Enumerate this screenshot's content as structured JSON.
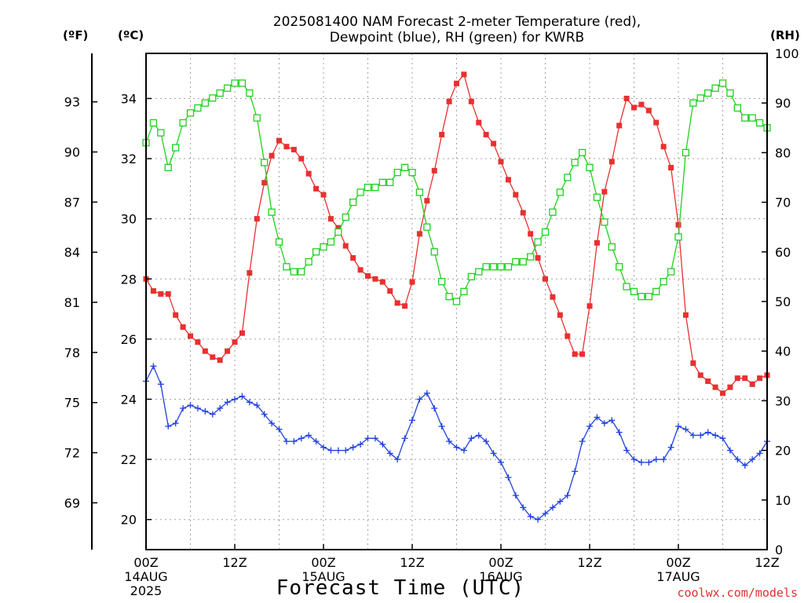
{
  "chart_data": {
    "type": "line",
    "title": "2025081400 NAM Forecast 2-meter Temperature (red),",
    "subtitle": "Dewpoint (blue), RH (green) for KWRB",
    "xlabel": "Forecast Time (UTC)",
    "credit": "coolwx.com/models",
    "left_unit_f": "(ºF)",
    "left_unit_c": "(ºC)",
    "right_unit": "(RH)",
    "x_ticks": [
      {
        "hour": 0,
        "label": [
          "00Z",
          "14AUG",
          "2025"
        ]
      },
      {
        "hour": 12,
        "label": [
          "12Z"
        ]
      },
      {
        "hour": 24,
        "label": [
          "00Z",
          "15AUG"
        ]
      },
      {
        "hour": 36,
        "label": [
          "12Z"
        ]
      },
      {
        "hour": 48,
        "label": [
          "00Z",
          "16AUG"
        ]
      },
      {
        "hour": 60,
        "label": [
          "12Z"
        ]
      },
      {
        "hour": 72,
        "label": [
          "00Z",
          "17AUG"
        ]
      },
      {
        "hour": 84,
        "label": [
          "12Z"
        ]
      }
    ],
    "xlim": [
      0,
      84
    ],
    "ylim_c": [
      19,
      35.5
    ],
    "yticks_c": [
      "20",
      "22",
      "24",
      "26",
      "28",
      "30",
      "32",
      "34"
    ],
    "yticks_f": [
      "69",
      "72",
      "75",
      "78",
      "81",
      "84",
      "87",
      "90",
      "93"
    ],
    "ylim_rh": [
      0,
      100
    ],
    "yticks_rh": [
      "0",
      "10",
      "20",
      "30",
      "40",
      "50",
      "60",
      "70",
      "80",
      "90",
      "100"
    ],
    "grid": true,
    "colors": {
      "temperature": "#e83030",
      "dewpoint": "#2040e0",
      "rh": "#20d020"
    },
    "x": [
      0,
      1,
      2,
      3,
      4,
      5,
      6,
      7,
      8,
      9,
      10,
      11,
      12,
      13,
      14,
      15,
      16,
      17,
      18,
      19,
      20,
      21,
      22,
      23,
      24,
      25,
      26,
      27,
      28,
      29,
      30,
      31,
      32,
      33,
      34,
      35,
      36,
      37,
      38,
      39,
      40,
      41,
      42,
      43,
      44,
      45,
      46,
      47,
      48,
      49,
      50,
      51,
      52,
      53,
      54,
      55,
      56,
      57,
      58,
      59,
      60,
      61,
      62,
      63,
      64,
      65,
      66,
      67,
      68,
      69,
      70,
      71,
      72,
      73,
      74,
      75,
      76,
      77,
      78,
      79,
      80,
      81,
      82,
      83,
      84
    ],
    "series": [
      {
        "name": "Temperature",
        "unit": "C",
        "color": "#e83030",
        "marker": "filled-square",
        "values": [
          28.0,
          27.6,
          27.5,
          27.5,
          26.8,
          26.4,
          26.1,
          25.9,
          25.6,
          25.4,
          25.3,
          25.6,
          25.9,
          26.2,
          28.2,
          30.0,
          31.2,
          32.1,
          32.6,
          32.4,
          32.3,
          32.0,
          31.5,
          31.0,
          30.8,
          30.0,
          29.7,
          29.1,
          28.7,
          28.3,
          28.1,
          28.0,
          27.9,
          27.6,
          27.2,
          27.1,
          27.9,
          29.5,
          30.6,
          31.6,
          32.8,
          33.9,
          34.5,
          34.8,
          33.9,
          33.2,
          32.8,
          32.5,
          31.9,
          31.3,
          30.8,
          30.2,
          29.5,
          28.7,
          28.0,
          27.4,
          26.8,
          26.1,
          25.5,
          25.5,
          27.1,
          29.2,
          30.9,
          31.9,
          33.1,
          34.0,
          33.7,
          33.8,
          33.6,
          33.2,
          32.4,
          31.7,
          29.8,
          26.8,
          25.2,
          24.8,
          24.6,
          24.4,
          24.2,
          24.4,
          24.7,
          24.7,
          24.5,
          24.7,
          24.8
        ]
      },
      {
        "name": "Dewpoint",
        "unit": "C",
        "color": "#2040e0",
        "marker": "plus",
        "values": [
          24.6,
          25.1,
          24.5,
          23.1,
          23.2,
          23.7,
          23.8,
          23.7,
          23.6,
          23.5,
          23.7,
          23.9,
          24.0,
          24.1,
          23.9,
          23.8,
          23.5,
          23.2,
          23.0,
          22.6,
          22.6,
          22.7,
          22.8,
          22.6,
          22.4,
          22.3,
          22.3,
          22.3,
          22.4,
          22.5,
          22.7,
          22.7,
          22.5,
          22.2,
          22.0,
          22.7,
          23.3,
          24.0,
          24.2,
          23.7,
          23.1,
          22.6,
          22.4,
          22.3,
          22.7,
          22.8,
          22.6,
          22.2,
          21.9,
          21.4,
          20.8,
          20.4,
          20.1,
          20.0,
          20.2,
          20.4,
          20.6,
          20.8,
          21.6,
          22.6,
          23.1,
          23.4,
          23.2,
          23.3,
          22.9,
          22.3,
          22.0,
          21.9,
          21.9,
          22.0,
          22.0,
          22.4,
          23.1,
          23.0,
          22.8,
          22.8,
          22.9,
          22.8,
          22.7,
          22.3,
          22.0,
          21.8,
          22.0,
          22.2,
          22.6
        ]
      },
      {
        "name": "RH",
        "unit": "%",
        "color": "#20d020",
        "marker": "open-square",
        "values": [
          82,
          86,
          84,
          77,
          81,
          86,
          88,
          89,
          90,
          91,
          92,
          93,
          94,
          94,
          92,
          87,
          78,
          68,
          62,
          57,
          56,
          56,
          58,
          60,
          61,
          62,
          64,
          67,
          70,
          72,
          73,
          73,
          74,
          74,
          76,
          77,
          76,
          72,
          65,
          60,
          54,
          51,
          50,
          52,
          55,
          56,
          57,
          57,
          57,
          57,
          58,
          58,
          59,
          62,
          64,
          68,
          72,
          75,
          78,
          80,
          77,
          71,
          66,
          61,
          57,
          53,
          52,
          51,
          51,
          52,
          54,
          56,
          63,
          80,
          90,
          91,
          92,
          93,
          94,
          92,
          89,
          87,
          87,
          86,
          85
        ]
      }
    ]
  }
}
